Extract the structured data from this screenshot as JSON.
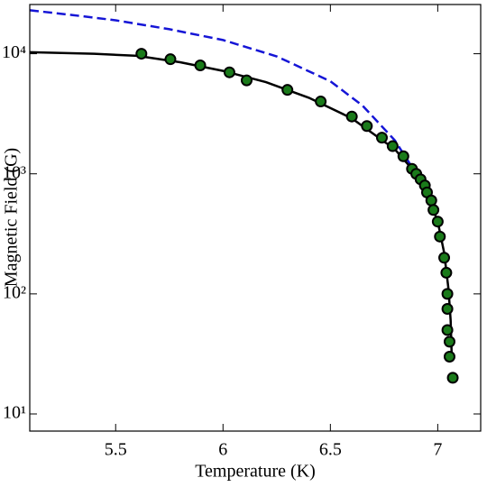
{
  "chart_data": {
    "type": "line",
    "x_label": "Temperature (K)",
    "y_label": "Magnetic Field (G)",
    "xlim": [
      5.1,
      7.2
    ],
    "xticks": [
      5.5,
      6,
      6.5,
      7
    ],
    "ylim": [
      7.2,
      25700
    ],
    "log_y": true,
    "yticks": [
      {
        "value": 10,
        "label": "10¹"
      },
      {
        "value": 100,
        "label": "10²"
      },
      {
        "value": 1000,
        "label": "10³"
      },
      {
        "value": 10000,
        "label": "10⁴"
      }
    ],
    "series": [
      {
        "style": "dashed",
        "color": "#1515d6",
        "x": [
          5.1,
          5.3,
          5.5,
          5.75,
          6.0,
          6.25,
          6.5,
          6.65,
          6.8,
          6.9,
          6.95,
          7.0,
          7.02
        ],
        "values": [
          23000,
          21000,
          19000,
          16000,
          13000,
          9500,
          5900,
          3700,
          1900,
          1000,
          650,
          370,
          260
        ]
      },
      {
        "style": "solid",
        "color": "#000000",
        "x": [
          5.1,
          5.4,
          5.6,
          5.8,
          6.0,
          6.2,
          6.4,
          6.6,
          6.8,
          6.9,
          6.95,
          7.0,
          7.03,
          7.05,
          7.06,
          7.065
        ],
        "values": [
          10300,
          10000,
          9600,
          8500,
          7200,
          5800,
          4300,
          2900,
          1600,
          1000,
          680,
          400,
          220,
          110,
          60,
          30
        ]
      },
      {
        "style": "markers",
        "color": "#1a7a1a",
        "x": [
          5.62,
          5.755,
          5.894,
          6.03,
          6.11,
          6.3,
          6.455,
          6.6,
          6.67,
          6.74,
          6.79,
          6.84,
          6.88,
          6.9,
          6.92,
          6.94,
          6.95,
          6.97,
          6.98,
          7.0,
          7.01,
          7.03,
          7.04,
          7.045,
          7.045,
          7.045,
          7.055,
          7.055,
          7.07
        ],
        "values": [
          10000,
          9000,
          8000,
          7000,
          6000,
          5000,
          4000,
          3000,
          2500,
          2000,
          1700,
          1400,
          1100,
          1000,
          900,
          800,
          700,
          600,
          500,
          400,
          300,
          200,
          150,
          100,
          75,
          50,
          40,
          30,
          20
        ]
      }
    ]
  }
}
